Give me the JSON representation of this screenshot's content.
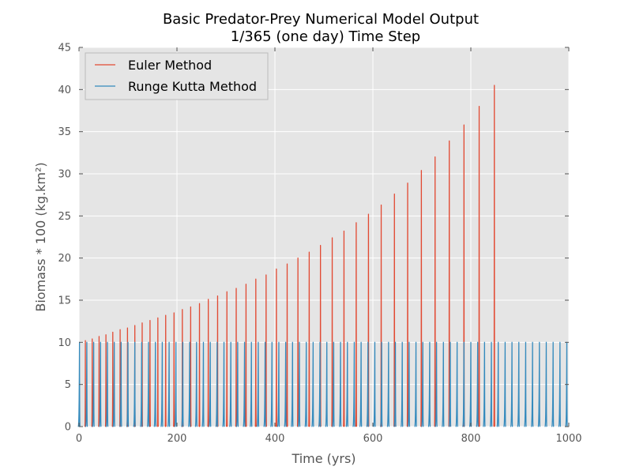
{
  "chart_data": {
    "type": "line",
    "title": "Basic Predator-Prey Numerical Model Output",
    "subtitle": "1/365 (one day) Time Step",
    "xlabel": "Time (yrs)",
    "ylabel": "Biomass * 100 (kg.km²)",
    "xlim": [
      0,
      1000
    ],
    "ylim": [
      0,
      45
    ],
    "xticks": [
      0,
      200,
      400,
      600,
      800,
      1000
    ],
    "yticks": [
      0,
      5,
      10,
      15,
      20,
      25,
      30,
      35,
      40,
      45
    ],
    "grid": true,
    "legend_position": "top-left",
    "series": [
      {
        "name": "Euler Method",
        "color": "#e24a33",
        "peaks": [
          {
            "x": 13,
            "y": 10.2
          },
          {
            "x": 27,
            "y": 10.4
          },
          {
            "x": 41,
            "y": 10.7
          },
          {
            "x": 55,
            "y": 10.9
          },
          {
            "x": 69,
            "y": 11.2
          },
          {
            "x": 84,
            "y": 11.5
          },
          {
            "x": 99,
            "y": 11.7
          },
          {
            "x": 114,
            "y": 12.0
          },
          {
            "x": 129,
            "y": 12.3
          },
          {
            "x": 145,
            "y": 12.6
          },
          {
            "x": 161,
            "y": 12.9
          },
          {
            "x": 177,
            "y": 13.2
          },
          {
            "x": 194,
            "y": 13.5
          },
          {
            "x": 211,
            "y": 13.9
          },
          {
            "x": 228,
            "y": 14.2
          },
          {
            "x": 246,
            "y": 14.6
          },
          {
            "x": 264,
            "y": 15.1
          },
          {
            "x": 283,
            "y": 15.5
          },
          {
            "x": 302,
            "y": 16.0
          },
          {
            "x": 321,
            "y": 16.4
          },
          {
            "x": 341,
            "y": 16.9
          },
          {
            "x": 361,
            "y": 17.5
          },
          {
            "x": 382,
            "y": 18.0
          },
          {
            "x": 403,
            "y": 18.7
          },
          {
            "x": 425,
            "y": 19.3
          },
          {
            "x": 447,
            "y": 20.0
          },
          {
            "x": 470,
            "y": 20.7
          },
          {
            "x": 493,
            "y": 21.5
          },
          {
            "x": 517,
            "y": 22.4
          },
          {
            "x": 541,
            "y": 23.2
          },
          {
            "x": 566,
            "y": 24.2
          },
          {
            "x": 591,
            "y": 25.2
          },
          {
            "x": 617,
            "y": 26.3
          },
          {
            "x": 644,
            "y": 27.6
          },
          {
            "x": 671,
            "y": 28.9
          },
          {
            "x": 699,
            "y": 30.4
          },
          {
            "x": 727,
            "y": 32.0
          },
          {
            "x": 756,
            "y": 33.9
          },
          {
            "x": 786,
            "y": 35.8
          },
          {
            "x": 817,
            "y": 38.0
          },
          {
            "x": 848,
            "y": 40.5
          }
        ]
      },
      {
        "name": "Runge Kutta Method",
        "color": "#348abd",
        "peak_value": 10.0,
        "peak_times": [
          1,
          16,
          30,
          44,
          58,
          72,
          86,
          100,
          114,
          128,
          142,
          156,
          170,
          184,
          198,
          212,
          226,
          240,
          254,
          268,
          282,
          296,
          310,
          324,
          338,
          352,
          366,
          380,
          394,
          408,
          422,
          436,
          450,
          464,
          478,
          492,
          506,
          520,
          534,
          548,
          562,
          576,
          590,
          604,
          618,
          632,
          646,
          660,
          674,
          688,
          702,
          716,
          730,
          744,
          758,
          772,
          786,
          800,
          814,
          828,
          842,
          856,
          870,
          884,
          898,
          912,
          926,
          940,
          954,
          968,
          982,
          996
        ]
      }
    ]
  }
}
